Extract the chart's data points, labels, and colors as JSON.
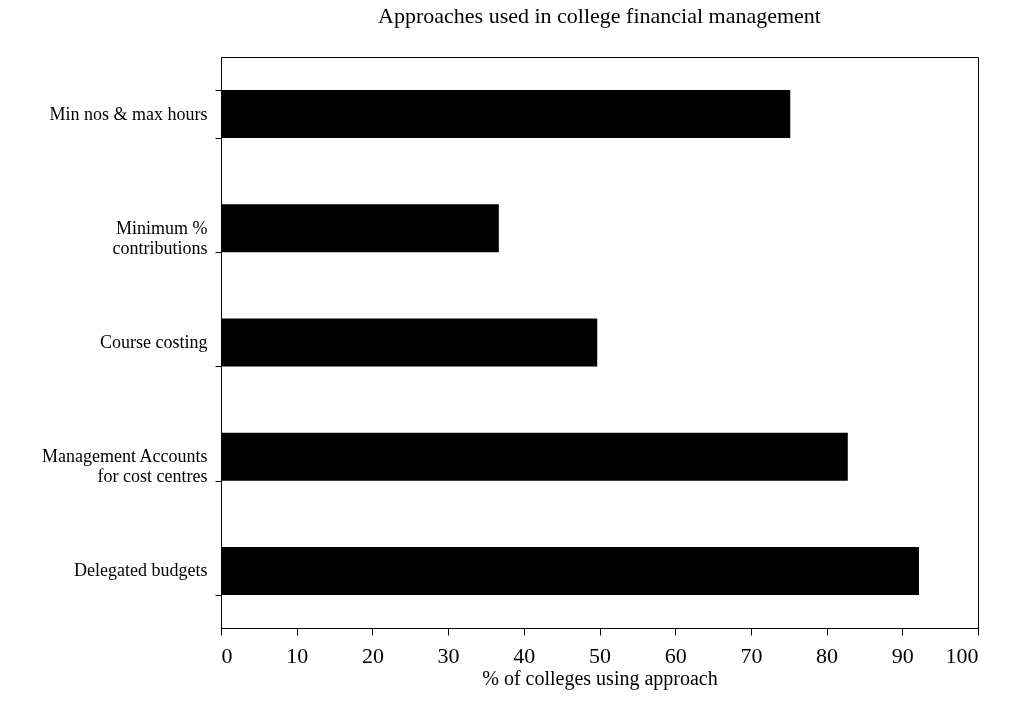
{
  "chart_data": {
    "type": "bar",
    "orientation": "horizontal",
    "title": "Approaches used in college financial management",
    "xlabel": "% of colleges using approach",
    "categories": [
      "Min nos & max hours",
      "Minimum % contributions",
      "Course costing",
      "Management Accounts for cost centres",
      "Delegated budgets"
    ],
    "values": [
      75.2,
      36.7,
      49.7,
      82.8,
      92.2
    ],
    "color": "#000000",
    "xlim": [
      0,
      100
    ],
    "xticks": [
      0,
      10,
      20,
      30,
      40,
      50,
      60,
      70,
      80,
      90,
      100
    ],
    "grid": false
  }
}
